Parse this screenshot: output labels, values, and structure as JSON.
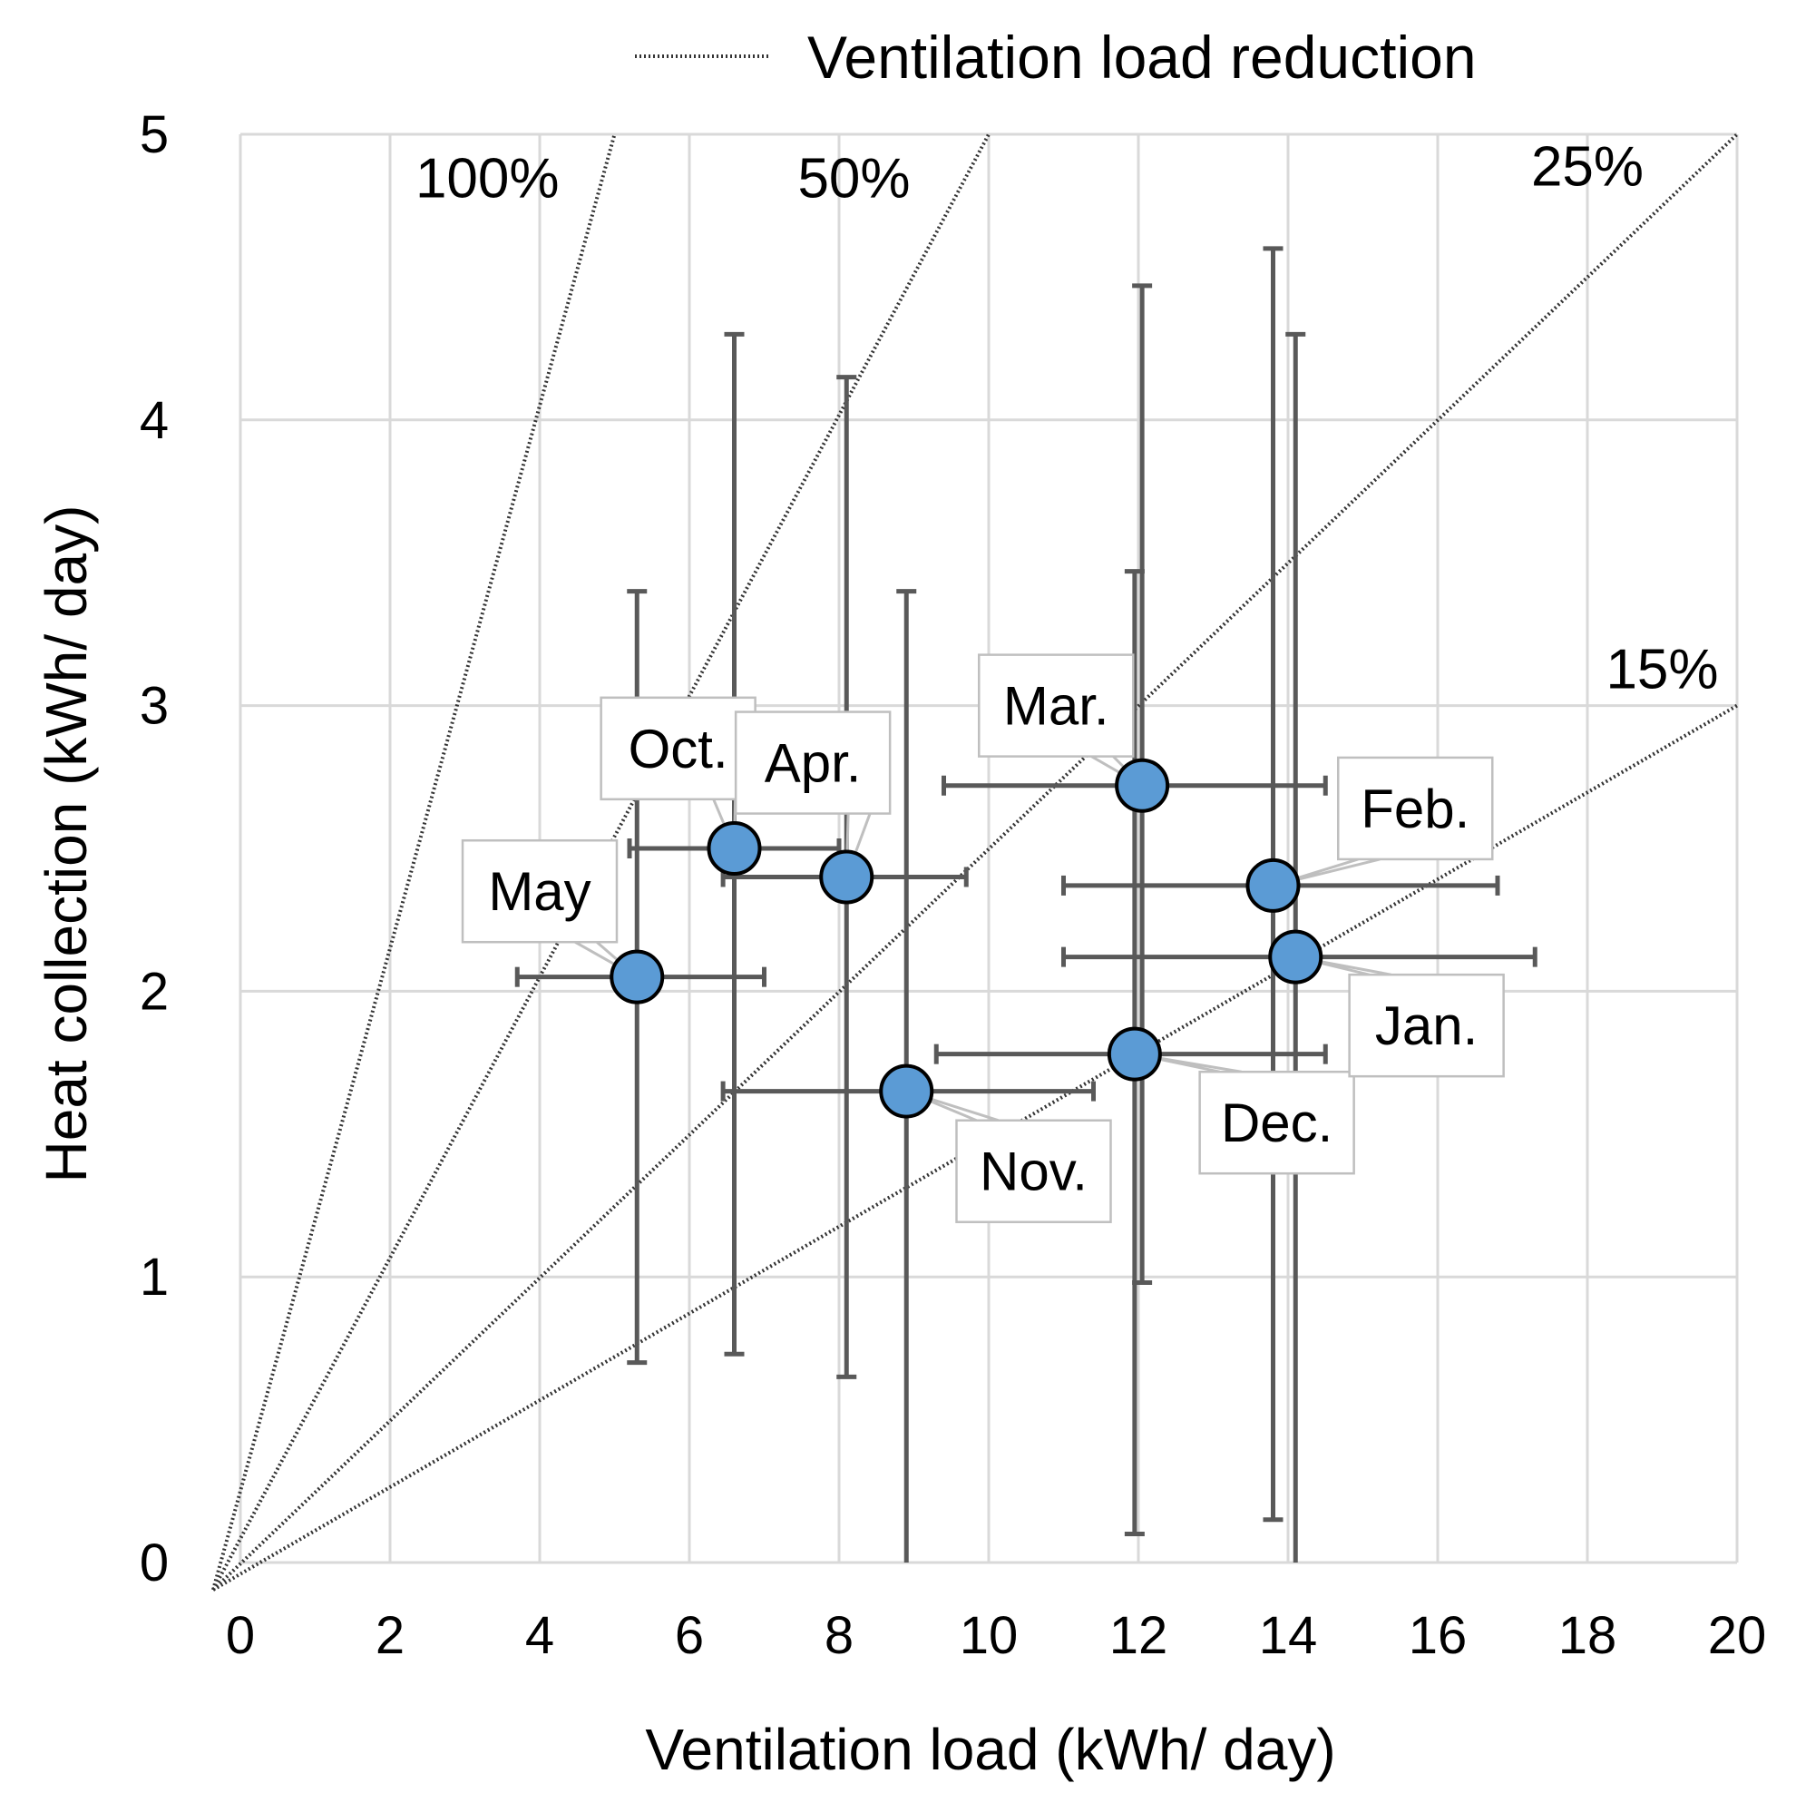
{
  "chart_data": {
    "type": "scatter",
    "title": "",
    "xlabel": "Ventilation load (kWh/ day)",
    "ylabel": "Heat collection (kWh/ day)",
    "xlim": [
      0,
      20
    ],
    "ylim": [
      0,
      5
    ],
    "x_ticks": [
      "0",
      "2",
      "4",
      "6",
      "8",
      "10",
      "12",
      "14",
      "16",
      "18",
      "20"
    ],
    "y_ticks": [
      "0",
      "1",
      "2",
      "3",
      "4",
      "5"
    ],
    "grid": true,
    "legend": {
      "position": "top",
      "entries": [
        "Ventilation load reduction"
      ]
    },
    "marker_color": "#5b9bd5",
    "reference_lines": [
      {
        "label": "100%",
        "slope": 1.0
      },
      {
        "label": "50%",
        "slope": 0.5
      },
      {
        "label": "25%",
        "slope": 0.25
      },
      {
        "label": "15%",
        "slope": 0.15
      }
    ],
    "points": [
      {
        "label": "May",
        "x": 5.3,
        "y": 2.05,
        "x_err": [
          3.7,
          7.0
        ],
        "y_err": [
          0.7,
          3.4
        ]
      },
      {
        "label": "Oct.",
        "x": 6.6,
        "y": 2.5,
        "x_err": [
          5.2,
          8.0
        ],
        "y_err": [
          0.73,
          4.3
        ]
      },
      {
        "label": "Apr.",
        "x": 8.1,
        "y": 2.4,
        "x_err": [
          6.45,
          9.7
        ],
        "y_err": [
          0.65,
          4.15
        ]
      },
      {
        "label": "Nov.",
        "x": 8.9,
        "y": 1.65,
        "x_err": [
          6.45,
          11.4
        ],
        "y_err": [
          0.0,
          3.4
        ]
      },
      {
        "label": "Mar.",
        "x": 12.05,
        "y": 2.72,
        "x_err": [
          9.4,
          14.5
        ],
        "y_err": [
          0.98,
          4.47
        ]
      },
      {
        "label": "Dec.",
        "x": 11.95,
        "y": 1.78,
        "x_err": [
          9.3,
          14.5
        ],
        "y_err": [
          0.1,
          3.47
        ]
      },
      {
        "label": "Feb.",
        "x": 13.8,
        "y": 2.37,
        "x_err": [
          11.0,
          16.8
        ],
        "y_err": [
          0.15,
          4.6
        ]
      },
      {
        "label": "Jan.",
        "x": 14.1,
        "y": 2.12,
        "x_err": [
          11.0,
          17.3
        ],
        "y_err": [
          0.0,
          4.3
        ]
      }
    ]
  }
}
